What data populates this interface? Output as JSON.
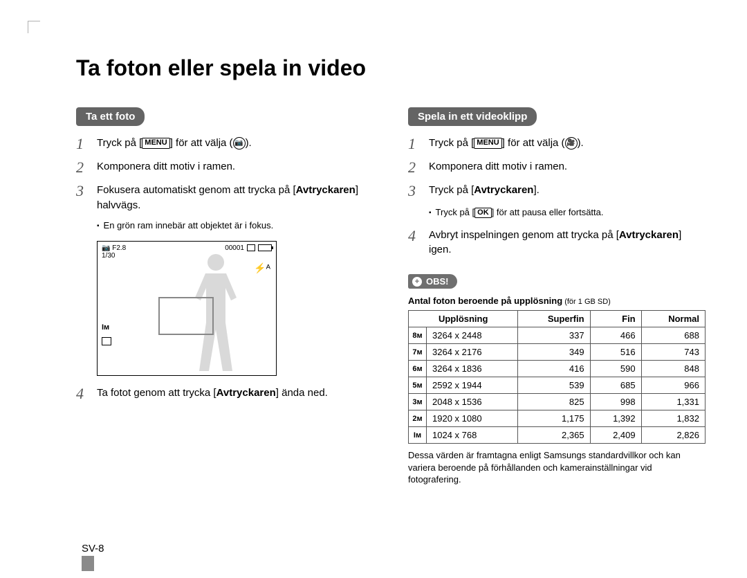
{
  "title": "Ta foton eller spela in video",
  "left": {
    "heading": "Ta ett foto",
    "step1_pre": "Tryck på [",
    "step1_key": "MENU",
    "step1_post": "] för att välja (",
    "step1_end": ").",
    "step2": "Komponera ditt motiv i ramen.",
    "step3": "Fokusera automatiskt genom att trycka på [Avtryckaren] halvvägs.",
    "step3_sub": "En grön ram innebär att objektet är i fokus.",
    "step4_pre": "Ta fotot genom att trycka [",
    "step4_bold": "Avtryckaren",
    "step4_post": "] ända ned.",
    "preview": {
      "aperture": "F2.8",
      "shutter": "1/30",
      "counter": "00001",
      "flash_icon": "⚡ᴬ",
      "size_icon": "Iм",
      "cam_icon": "📷"
    }
  },
  "right": {
    "heading": "Spela in ett videoklipp",
    "step1_pre": "Tryck på [",
    "step1_key": "MENU",
    "step1_post": "] för att välja (",
    "step1_end": ").",
    "step2": "Komponera ditt motiv i ramen.",
    "step3_pre": "Tryck på [",
    "step3_bold": "Avtryckaren",
    "step3_post": "].",
    "step3_sub_pre": "Tryck på [",
    "step3_sub_key": "OK",
    "step3_sub_post": "] för att pausa eller fortsätta.",
    "step4_pre": "Avbryt inspelningen genom att trycka på [",
    "step4_bold": "Avtryckaren",
    "step4_post": "] igen.",
    "obs": "OBS!",
    "table_caption_bold": "Antal foton beroende på upplösning",
    "table_caption_small": " (för 1 GB SD)",
    "table": {
      "headers": [
        "Upplösning",
        "Superfin",
        "Fin",
        "Normal"
      ],
      "rows": [
        {
          "icon": "8ᴍ",
          "res": "3264 x 2448",
          "sf": "337",
          "f": "466",
          "n": "688"
        },
        {
          "icon": "7ᴍ",
          "res": "3264 x 2176",
          "sf": "349",
          "f": "516",
          "n": "743"
        },
        {
          "icon": "6ᴍ",
          "res": "3264 x 1836",
          "sf": "416",
          "f": "590",
          "n": "848"
        },
        {
          "icon": "5ᴍ",
          "res": "2592 x 1944",
          "sf": "539",
          "f": "685",
          "n": "966"
        },
        {
          "icon": "3ᴍ",
          "res": "2048 x 1536",
          "sf": "825",
          "f": "998",
          "n": "1,331"
        },
        {
          "icon": "2ᴍ",
          "res": "1920 x 1080",
          "sf": "1,175",
          "f": "1,392",
          "n": "1,832"
        },
        {
          "icon": "Iᴍ",
          "res": "1024 x 768",
          "sf": "2,365",
          "f": "2,409",
          "n": "2,826"
        }
      ]
    },
    "footnote": "Dessa värden är framtagna enligt Samsungs standardvillkor och kan variera beroende på förhållanden och kamerainställningar vid fotografering."
  },
  "page": "SV-8"
}
